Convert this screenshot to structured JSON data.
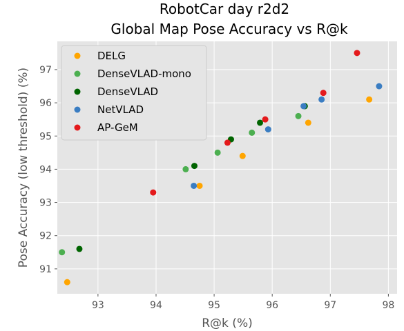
{
  "chart_data": {
    "type": "scatter",
    "title": "RobotCar day r2d2",
    "subtitle": "Global Map Pose Accuracy vs R@k",
    "xlabel": "R@k (%)",
    "ylabel": "Pose Accuracy (low threshold) (%)",
    "xlim": [
      92.3,
      98.15
    ],
    "ylim": [
      90.25,
      97.85
    ],
    "xticks": [
      "93",
      "94",
      "95",
      "96",
      "97",
      "98"
    ],
    "yticks": [
      "91",
      "92",
      "93",
      "94",
      "95",
      "96",
      "97"
    ],
    "grid": true,
    "legend_position": "top-left",
    "series": [
      {
        "name": "DELG",
        "color": "#FFA500",
        "points": [
          [
            92.47,
            90.6
          ],
          [
            94.75,
            93.5
          ],
          [
            95.49,
            94.4
          ],
          [
            96.62,
            95.4
          ],
          [
            97.67,
            96.1
          ]
        ]
      },
      {
        "name": "DenseVLAD-mono",
        "color": "#4CAF50",
        "points": [
          [
            92.38,
            91.5
          ],
          [
            94.51,
            94.0
          ],
          [
            95.06,
            94.5
          ],
          [
            95.65,
            95.1
          ],
          [
            96.45,
            95.6
          ],
          [
            96.56,
            95.9
          ]
        ]
      },
      {
        "name": "DenseVLAD",
        "color": "#006400",
        "points": [
          [
            92.68,
            91.6
          ],
          [
            94.66,
            94.1
          ],
          [
            95.29,
            94.9
          ],
          [
            95.79,
            95.4
          ],
          [
            96.56,
            95.9
          ]
        ]
      },
      {
        "name": "NetVLAD",
        "color": "#3A7DC2",
        "points": [
          [
            94.65,
            93.5
          ],
          [
            95.93,
            95.2
          ],
          [
            96.54,
            95.9
          ],
          [
            96.85,
            96.1
          ],
          [
            97.84,
            96.5
          ]
        ]
      },
      {
        "name": "AP-GeM",
        "color": "#E41A1C",
        "points": [
          [
            93.95,
            93.3
          ],
          [
            95.23,
            94.8
          ],
          [
            95.88,
            95.5
          ],
          [
            96.88,
            96.3
          ],
          [
            97.46,
            97.5
          ]
        ]
      }
    ]
  }
}
